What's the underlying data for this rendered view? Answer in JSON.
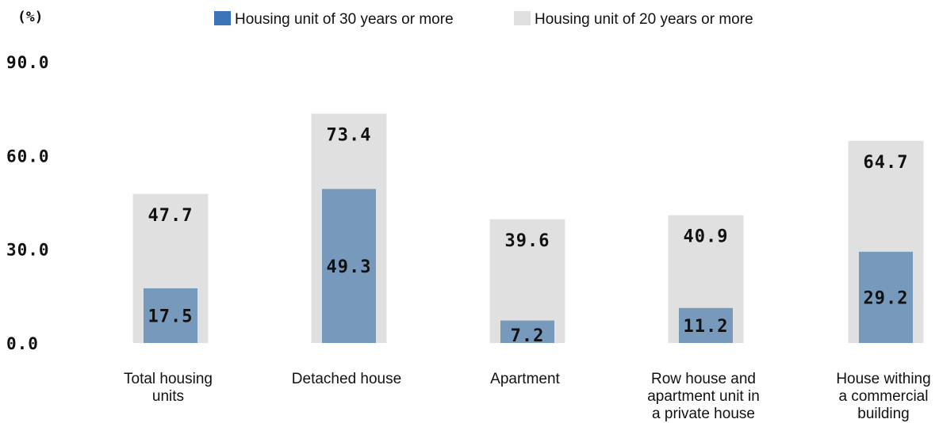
{
  "chart_data": {
    "type": "bar",
    "unit_label": "(%)",
    "categories": [
      [
        "Total housing",
        "units"
      ],
      [
        "Detached house"
      ],
      [
        "Apartment"
      ],
      [
        "Row house and",
        "apartment unit in",
        "a private house"
      ],
      [
        "House withing",
        "a commercial",
        "building"
      ]
    ],
    "series": [
      {
        "name": "Housing unit of 30 years or more",
        "color": "#7799BB",
        "legend_color": "#3B74B8",
        "values": [
          17.5,
          49.3,
          7.2,
          11.2,
          29.2
        ],
        "labels": [
          "17.5",
          "49.3",
          "7.2",
          "11.2",
          "29.2"
        ]
      },
      {
        "name": "Housing unit of 20 years or more",
        "color": "#E0E0E0",
        "legend_color": "#E0E0E0",
        "values": [
          47.7,
          73.4,
          39.6,
          40.9,
          64.7
        ],
        "labels": [
          "47.7",
          "73.4",
          "39.6",
          "40.9",
          "64.7"
        ]
      }
    ],
    "yticks": [
      "0.0",
      "30.0",
      "60.0",
      "90.0"
    ],
    "ylim": [
      0,
      90
    ],
    "grid": false,
    "legend_position": "top"
  }
}
